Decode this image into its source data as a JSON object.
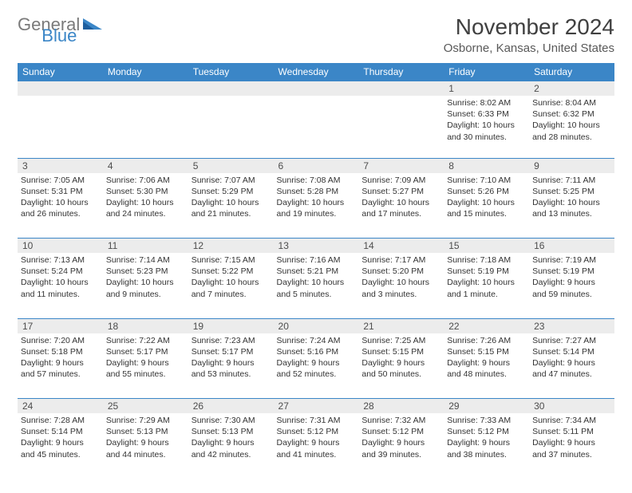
{
  "logo": {
    "text1": "General",
    "text2": "Blue"
  },
  "title": "November 2024",
  "subtitle": "Osborne, Kansas, United States",
  "colors": {
    "header_bg": "#3b86c7",
    "header_fg": "#ffffff",
    "daynum_bg": "#ececec",
    "border": "#3b86c7",
    "title_color": "#404040",
    "subtitle_color": "#595959",
    "logo_gray": "#7a7a7a",
    "logo_blue": "#3b86c7",
    "text": "#333333"
  },
  "day_headers": [
    "Sunday",
    "Monday",
    "Tuesday",
    "Wednesday",
    "Thursday",
    "Friday",
    "Saturday"
  ],
  "weeks": [
    [
      null,
      null,
      null,
      null,
      null,
      {
        "n": "1",
        "sr": "8:02 AM",
        "ss": "6:33 PM",
        "dl": "10 hours and 30 minutes."
      },
      {
        "n": "2",
        "sr": "8:04 AM",
        "ss": "6:32 PM",
        "dl": "10 hours and 28 minutes."
      }
    ],
    [
      {
        "n": "3",
        "sr": "7:05 AM",
        "ss": "5:31 PM",
        "dl": "10 hours and 26 minutes."
      },
      {
        "n": "4",
        "sr": "7:06 AM",
        "ss": "5:30 PM",
        "dl": "10 hours and 24 minutes."
      },
      {
        "n": "5",
        "sr": "7:07 AM",
        "ss": "5:29 PM",
        "dl": "10 hours and 21 minutes."
      },
      {
        "n": "6",
        "sr": "7:08 AM",
        "ss": "5:28 PM",
        "dl": "10 hours and 19 minutes."
      },
      {
        "n": "7",
        "sr": "7:09 AM",
        "ss": "5:27 PM",
        "dl": "10 hours and 17 minutes."
      },
      {
        "n": "8",
        "sr": "7:10 AM",
        "ss": "5:26 PM",
        "dl": "10 hours and 15 minutes."
      },
      {
        "n": "9",
        "sr": "7:11 AM",
        "ss": "5:25 PM",
        "dl": "10 hours and 13 minutes."
      }
    ],
    [
      {
        "n": "10",
        "sr": "7:13 AM",
        "ss": "5:24 PM",
        "dl": "10 hours and 11 minutes."
      },
      {
        "n": "11",
        "sr": "7:14 AM",
        "ss": "5:23 PM",
        "dl": "10 hours and 9 minutes."
      },
      {
        "n": "12",
        "sr": "7:15 AM",
        "ss": "5:22 PM",
        "dl": "10 hours and 7 minutes."
      },
      {
        "n": "13",
        "sr": "7:16 AM",
        "ss": "5:21 PM",
        "dl": "10 hours and 5 minutes."
      },
      {
        "n": "14",
        "sr": "7:17 AM",
        "ss": "5:20 PM",
        "dl": "10 hours and 3 minutes."
      },
      {
        "n": "15",
        "sr": "7:18 AM",
        "ss": "5:19 PM",
        "dl": "10 hours and 1 minute."
      },
      {
        "n": "16",
        "sr": "7:19 AM",
        "ss": "5:19 PM",
        "dl": "9 hours and 59 minutes."
      }
    ],
    [
      {
        "n": "17",
        "sr": "7:20 AM",
        "ss": "5:18 PM",
        "dl": "9 hours and 57 minutes."
      },
      {
        "n": "18",
        "sr": "7:22 AM",
        "ss": "5:17 PM",
        "dl": "9 hours and 55 minutes."
      },
      {
        "n": "19",
        "sr": "7:23 AM",
        "ss": "5:17 PM",
        "dl": "9 hours and 53 minutes."
      },
      {
        "n": "20",
        "sr": "7:24 AM",
        "ss": "5:16 PM",
        "dl": "9 hours and 52 minutes."
      },
      {
        "n": "21",
        "sr": "7:25 AM",
        "ss": "5:15 PM",
        "dl": "9 hours and 50 minutes."
      },
      {
        "n": "22",
        "sr": "7:26 AM",
        "ss": "5:15 PM",
        "dl": "9 hours and 48 minutes."
      },
      {
        "n": "23",
        "sr": "7:27 AM",
        "ss": "5:14 PM",
        "dl": "9 hours and 47 minutes."
      }
    ],
    [
      {
        "n": "24",
        "sr": "7:28 AM",
        "ss": "5:14 PM",
        "dl": "9 hours and 45 minutes."
      },
      {
        "n": "25",
        "sr": "7:29 AM",
        "ss": "5:13 PM",
        "dl": "9 hours and 44 minutes."
      },
      {
        "n": "26",
        "sr": "7:30 AM",
        "ss": "5:13 PM",
        "dl": "9 hours and 42 minutes."
      },
      {
        "n": "27",
        "sr": "7:31 AM",
        "ss": "5:12 PM",
        "dl": "9 hours and 41 minutes."
      },
      {
        "n": "28",
        "sr": "7:32 AM",
        "ss": "5:12 PM",
        "dl": "9 hours and 39 minutes."
      },
      {
        "n": "29",
        "sr": "7:33 AM",
        "ss": "5:12 PM",
        "dl": "9 hours and 38 minutes."
      },
      {
        "n": "30",
        "sr": "7:34 AM",
        "ss": "5:11 PM",
        "dl": "9 hours and 37 minutes."
      }
    ]
  ],
  "labels": {
    "sunrise": "Sunrise: ",
    "sunset": "Sunset: ",
    "daylight": "Daylight: "
  }
}
